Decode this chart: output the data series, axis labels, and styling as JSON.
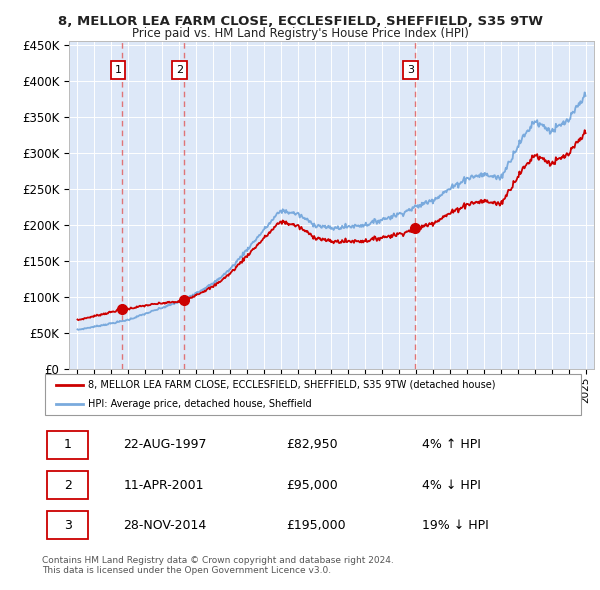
{
  "title_line1": "8, MELLOR LEA FARM CLOSE, ECCLESFIELD, SHEFFIELD, S35 9TW",
  "title_line2": "Price paid vs. HM Land Registry's House Price Index (HPI)",
  "ylim": [
    0,
    450000
  ],
  "yticks": [
    0,
    50000,
    100000,
    150000,
    200000,
    250000,
    300000,
    350000,
    400000,
    450000
  ],
  "ytick_labels": [
    "£0",
    "£50K",
    "£100K",
    "£150K",
    "£200K",
    "£250K",
    "£300K",
    "£350K",
    "£400K",
    "£450K"
  ],
  "background_color": "#ffffff",
  "plot_bg_color": "#dde8f8",
  "grid_color": "#ffffff",
  "transactions": [
    {
      "date_num": 1997.644,
      "price": 82950,
      "label": "1"
    },
    {
      "date_num": 2001.274,
      "price": 95000,
      "label": "2"
    },
    {
      "date_num": 2014.907,
      "price": 195000,
      "label": "3"
    }
  ],
  "vline_color": "#e06060",
  "sale_dot_color": "#cc0000",
  "sale_line_color": "#cc0000",
  "hpi_line_color": "#7aaadd",
  "legend_entries": [
    "8, MELLOR LEA FARM CLOSE, ECCLESFIELD, SHEFFIELD, S35 9TW (detached house)",
    "HPI: Average price, detached house, Sheffield"
  ],
  "table_entries": [
    {
      "num": "1",
      "date": "22-AUG-1997",
      "price": "£82,950",
      "hpi": "4% ↑ HPI"
    },
    {
      "num": "2",
      "date": "11-APR-2001",
      "price": "£95,000",
      "hpi": "4% ↓ HPI"
    },
    {
      "num": "3",
      "date": "28-NOV-2014",
      "price": "£195,000",
      "hpi": "19% ↓ HPI"
    }
  ],
  "footnote": "Contains HM Land Registry data © Crown copyright and database right 2024.\nThis data is licensed under the Open Government Licence v3.0."
}
